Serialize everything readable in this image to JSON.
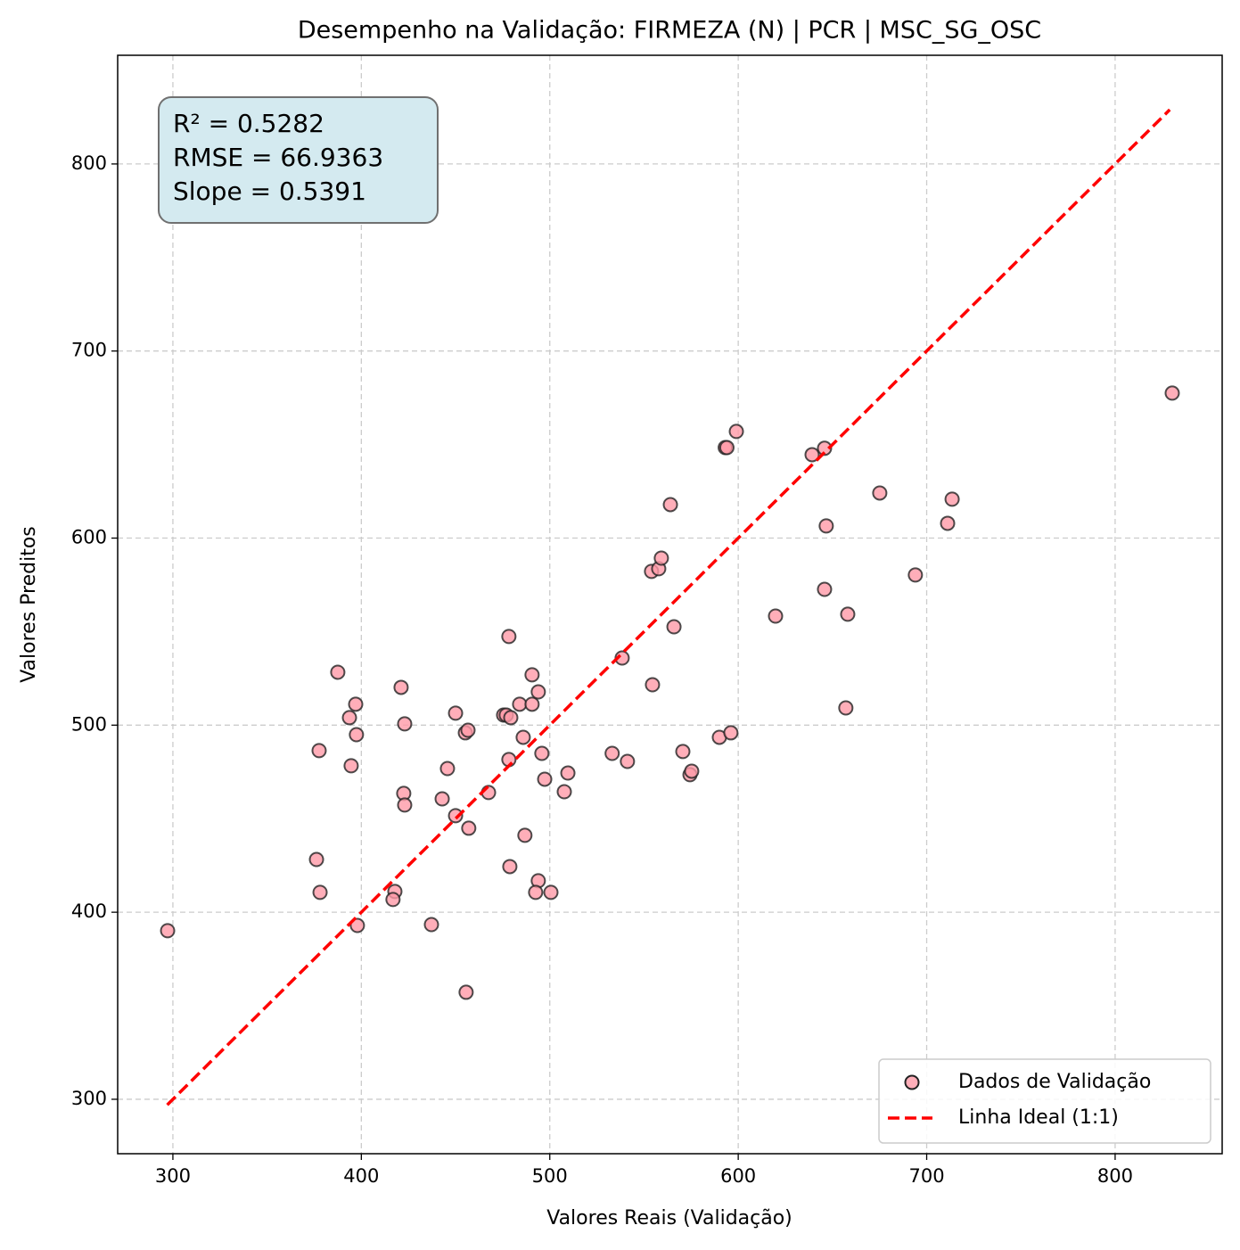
{
  "chart_data": {
    "type": "scatter",
    "title": "Desempenho na Validação: FIRMEZA (N) | PCR | MSC_SG_OSC",
    "x_label": "Valores Reais (Validação)",
    "y_label": "Valores Preditos",
    "annotations": [
      "R² = 0.5282",
      "RMSE = 66.9363",
      "Slope = 0.5391"
    ],
    "xlim": [
      270.7,
      856.8
    ],
    "ylim": [
      270.9,
      858.1
    ],
    "xticks": [
      300,
      400,
      500,
      600,
      700,
      800
    ],
    "yticks": [
      300,
      400,
      500,
      600,
      700,
      800
    ],
    "grid": true,
    "legend": "lower right",
    "series": [
      {
        "name": "Dados de Validação",
        "type": "scatter",
        "color": "#ff9aa8",
        "x": [
          297.2,
          376.2,
          378.1,
          377.6,
          387.5,
          393.7,
          397.0,
          397.4,
          394.6,
          397.9,
          421.1,
          423.0,
          422.5,
          423.0,
          417.8,
          416.8,
          437.2,
          445.7,
          442.9,
          450.0,
          450.0,
          455.2,
          456.6,
          457.0,
          455.6,
          467.5,
          475.5,
          476.9,
          479.3,
          478.3,
          478.3,
          478.8,
          484.0,
          490.6,
          490.6,
          493.9,
          485.9,
          486.8,
          493.9,
          492.5,
          500.6,
          495.8,
          497.3,
          507.7,
          509.6,
          533.1,
          541.2,
          538.4,
          554.5,
          554.0,
          557.8,
          559.2,
          564.0,
          565.9,
          570.6,
          574.4,
          575.3,
          590.0,
          596.1,
          593.1,
          594.0,
          599.0,
          619.8,
          639.2,
          645.8,
          646.7,
          645.8,
          658.1,
          657.1,
          675.1,
          694.0,
          711.1,
          713.5,
          830.3
        ],
        "values": [
          390.1,
          428.2,
          410.6,
          486.4,
          528.3,
          504.0,
          511.2,
          494.9,
          478.3,
          392.9,
          520.2,
          500.7,
          463.5,
          457.3,
          411.1,
          406.8,
          393.4,
          476.8,
          460.6,
          506.4,
          451.6,
          495.9,
          497.3,
          444.9,
          357.2,
          464.0,
          505.4,
          505.4,
          504.0,
          547.4,
          481.6,
          424.4,
          511.2,
          526.9,
          511.2,
          517.8,
          493.5,
          441.1,
          416.8,
          410.6,
          410.6,
          484.9,
          471.1,
          464.4,
          474.4,
          484.9,
          480.6,
          535.9,
          521.6,
          582.2,
          583.6,
          589.3,
          617.9,
          552.6,
          485.9,
          473.5,
          475.4,
          493.5,
          495.9,
          648.4,
          648.4,
          657.0,
          558.3,
          644.6,
          648.0,
          606.5,
          572.6,
          559.3,
          509.2,
          624.1,
          580.3,
          607.9,
          620.8,
          677.5
        ]
      },
      {
        "name": "Linha Ideal (1:1)",
        "type": "line",
        "color": "#ff0000",
        "x": [
          297,
          829
        ],
        "values": [
          297,
          829
        ]
      }
    ]
  }
}
